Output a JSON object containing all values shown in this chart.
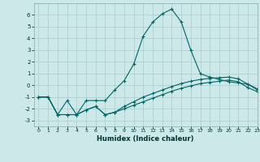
{
  "xlabel": "Humidex (Indice chaleur)",
  "xlim": [
    -0.5,
    23
  ],
  "ylim": [
    -3.5,
    7.0
  ],
  "bg_color": "#cce8e8",
  "grid_color": "#aacccc",
  "line_color": "#006666",
  "yticks": [
    -3,
    -2,
    -1,
    0,
    1,
    2,
    3,
    4,
    5,
    6
  ],
  "xticks": [
    0,
    1,
    2,
    3,
    4,
    5,
    6,
    7,
    8,
    9,
    10,
    11,
    12,
    13,
    14,
    15,
    16,
    17,
    18,
    19,
    20,
    21,
    22,
    23
  ],
  "series1_x": [
    0,
    1,
    2,
    3,
    4,
    5,
    6,
    7,
    8,
    9,
    10,
    11,
    12,
    13,
    14,
    15,
    16,
    17,
    18,
    19,
    20,
    21,
    22,
    23
  ],
  "series1_y": [
    -1.0,
    -1.0,
    -2.5,
    -1.3,
    -2.5,
    -1.3,
    -1.3,
    -1.3,
    -0.4,
    0.4,
    1.8,
    4.2,
    5.4,
    6.1,
    6.5,
    5.4,
    3.0,
    1.0,
    0.7,
    0.5,
    0.3,
    0.2,
    0.1,
    -0.3
  ],
  "series2_x": [
    0,
    1,
    2,
    3,
    4,
    5,
    6,
    7,
    8,
    9,
    10,
    11,
    12,
    13,
    14,
    15,
    16,
    17,
    18,
    19,
    20,
    21,
    22,
    23
  ],
  "series2_y": [
    -1.0,
    -1.0,
    -2.5,
    -2.5,
    -2.5,
    -2.1,
    -1.8,
    -2.5,
    -2.3,
    -1.8,
    -1.4,
    -1.0,
    -0.7,
    -0.4,
    -0.1,
    0.15,
    0.35,
    0.5,
    0.6,
    0.65,
    0.7,
    0.55,
    0.1,
    -0.4
  ],
  "series3_x": [
    0,
    1,
    2,
    3,
    4,
    5,
    6,
    7,
    8,
    9,
    10,
    11,
    12,
    13,
    14,
    15,
    16,
    17,
    18,
    19,
    20,
    21,
    22,
    23
  ],
  "series3_y": [
    -1.0,
    -1.0,
    -2.5,
    -2.5,
    -2.5,
    -2.1,
    -1.8,
    -2.5,
    -2.3,
    -2.0,
    -1.7,
    -1.4,
    -1.1,
    -0.8,
    -0.5,
    -0.25,
    -0.05,
    0.15,
    0.25,
    0.35,
    0.45,
    0.3,
    -0.2,
    -0.55
  ]
}
